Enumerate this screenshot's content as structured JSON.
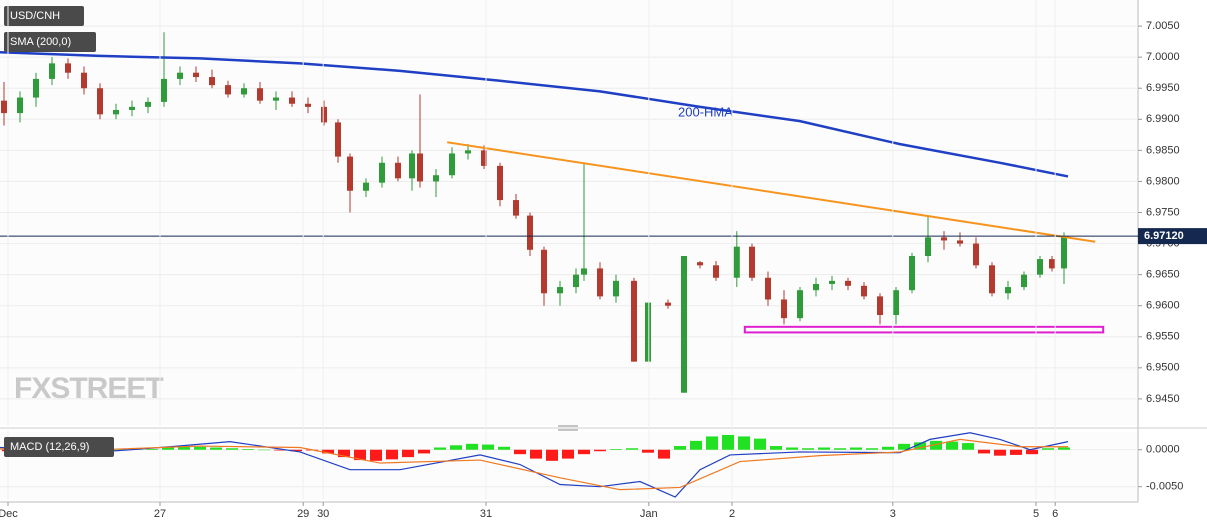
{
  "chart_data": [
    {
      "type": "candlestick",
      "title": "USD/CNH",
      "x": [
        0.5,
        2.5,
        4.5,
        6.5,
        8.5,
        10.5,
        12.5,
        14.5,
        16.5,
        18.5,
        20.5,
        22.5,
        24.5,
        26.5,
        28.5,
        30.5,
        32.5,
        34.5,
        36.5,
        38.5,
        40.5,
        42.25,
        43.75,
        45.75,
        47.75,
        49.75,
        51.5,
        52.5,
        54.5,
        56.5,
        58.5,
        60.5,
        62.5,
        64.5,
        66.25,
        68,
        70,
        72,
        73,
        75,
        77,
        79.25,
        81,
        83.5,
        85.5,
        87.5,
        89.5,
        92.1,
        94,
        96,
        98,
        100,
        102,
        104,
        106,
        108,
        110,
        112,
        114,
        116,
        118,
        120,
        122,
        124,
        126,
        128,
        130,
        131.5,
        133
      ],
      "open": [
        6.993,
        6.991,
        6.9935,
        6.9965,
        6.999,
        6.9975,
        6.995,
        6.9908,
        6.9915,
        6.992,
        6.9928,
        6.9965,
        6.9975,
        6.9968,
        6.9955,
        6.994,
        6.995,
        6.993,
        6.9935,
        6.9925,
        6.992,
        6.9895,
        6.984,
        6.9785,
        6.9798,
        6.983,
        6.9805,
        6.9845,
        6.98,
        6.981,
        6.9845,
        6.985,
        6.9825,
        6.977,
        6.9745,
        6.969,
        6.962,
        6.963,
        6.965,
        6.966,
        6.9615,
        6.964,
        6.951,
        6.9605,
        6.946,
        6.967,
        6.9665,
        6.9645,
        6.9695,
        6.9645,
        6.961,
        6.958,
        6.9625,
        6.9635,
        6.964,
        6.9632,
        6.9615,
        6.9585,
        6.9625,
        6.968,
        6.971,
        6.9705,
        6.97,
        6.9665,
        6.962,
        6.963,
        6.965,
        6.9675,
        6.966
      ],
      "high": [
        6.996,
        6.9945,
        6.9975,
        7.0,
        6.9998,
        6.9985,
        6.9958,
        6.9925,
        6.993,
        6.9935,
        7.004,
        6.9985,
        6.9985,
        6.998,
        6.9962,
        6.9958,
        6.996,
        6.9945,
        6.9945,
        6.9935,
        6.993,
        6.99,
        6.9845,
        6.9805,
        6.984,
        6.984,
        6.985,
        6.994,
        6.982,
        6.9855,
        6.986,
        6.9858,
        6.983,
        6.978,
        6.975,
        6.9695,
        6.964,
        6.966,
        6.983,
        6.967,
        6.965,
        6.9645,
        6.9605,
        6.961,
        6.968,
        6.9672,
        6.9672,
        6.972,
        6.97,
        6.9655,
        6.9625,
        6.963,
        6.9645,
        6.9648,
        6.9645,
        6.9638,
        6.962,
        6.963,
        6.9685,
        6.9745,
        6.972,
        6.9718,
        6.971,
        6.967,
        6.964,
        6.9655,
        6.968,
        6.968,
        6.9718
      ],
      "low": [
        6.989,
        6.9895,
        6.992,
        6.9955,
        6.9965,
        6.994,
        6.99,
        6.99,
        6.9905,
        6.991,
        6.992,
        6.9955,
        6.996,
        6.995,
        6.9935,
        6.9935,
        6.9925,
        6.9915,
        6.992,
        6.991,
        6.989,
        6.983,
        6.975,
        6.9775,
        6.979,
        6.98,
        6.9785,
        6.979,
        6.9775,
        6.9805,
        6.9835,
        6.982,
        6.976,
        6.974,
        6.968,
        6.96,
        6.96,
        6.962,
        6.964,
        6.961,
        6.9605,
        6.951,
        6.951,
        6.9595,
        6.946,
        6.966,
        6.964,
        6.963,
        6.964,
        6.96,
        6.957,
        6.9575,
        6.9615,
        6.9625,
        6.9625,
        6.961,
        6.957,
        6.957,
        6.962,
        6.967,
        6.969,
        6.9695,
        6.966,
        6.9615,
        6.961,
        6.9625,
        6.9645,
        6.9655,
        6.9635
      ],
      "close": [
        6.991,
        6.9935,
        6.9965,
        6.999,
        6.9975,
        6.995,
        6.9908,
        6.9915,
        6.992,
        6.9928,
        6.9965,
        6.9975,
        6.9968,
        6.9955,
        6.994,
        6.995,
        6.993,
        6.9935,
        6.9925,
        6.992,
        6.9895,
        6.984,
        6.9785,
        6.9798,
        6.983,
        6.9805,
        6.9845,
        6.98,
        6.981,
        6.9845,
        6.985,
        6.9825,
        6.977,
        6.9745,
        6.969,
        6.962,
        6.963,
        6.965,
        6.966,
        6.9615,
        6.964,
        6.951,
        6.9605,
        6.96,
        6.968,
        6.9665,
        6.9645,
        6.9695,
        6.9645,
        6.961,
        6.958,
        6.9625,
        6.9635,
        6.964,
        6.9632,
        6.9615,
        6.9585,
        6.9625,
        6.968,
        6.971,
        6.9705,
        6.97,
        6.9665,
        6.962,
        6.963,
        6.965,
        6.9675,
        6.966,
        6.9712
      ],
      "up_color": "#2f9b3a",
      "down_color": "#b23a2e",
      "lines": [
        {
          "name": "SMA (200,0)",
          "annotation": "200-HMA",
          "color": "#1f3fc4",
          "x": [
            0,
            12.5,
            25,
            37.5,
            50,
            62.5,
            75,
            87.5,
            100,
            112.5,
            125,
            133.5
          ],
          "values": [
            7.0008,
            7.0002,
            6.9998,
            6.999,
            6.9978,
            6.9962,
            6.9945,
            6.992,
            6.9897,
            6.986,
            6.983,
            6.9808
          ]
        }
      ],
      "trendline": {
        "color": "#f7941d",
        "x": [
          55.9,
          136.9
        ],
        "values": [
          6.9863,
          6.9703
        ]
      },
      "support": {
        "color": "#e020d0",
        "x": [
          93.1,
          137.9
        ],
        "values": [
          6.9557,
          6.9566
        ]
      },
      "last_price": {
        "value": 6.9712,
        "label": "6.97120",
        "color": "#142850"
      },
      "brand": "FXSTREET",
      "xlim": [
        0,
        142.25
      ],
      "ylim": [
        6.9408,
        7.0092
      ],
      "yticks": [
        {
          "value": 7.005,
          "label": "7.0050"
        },
        {
          "value": 7.0,
          "label": "7.0000"
        },
        {
          "value": 6.995,
          "label": "6.9950"
        },
        {
          "value": 6.99,
          "label": "6.9900"
        },
        {
          "value": 6.985,
          "label": "6.9850"
        },
        {
          "value": 6.98,
          "label": "6.9800"
        },
        {
          "value": 6.975,
          "label": "6.9750"
        },
        {
          "value": 6.97,
          "label": "6.9700"
        },
        {
          "value": 6.965,
          "label": "6.9650"
        },
        {
          "value": 6.96,
          "label": "6.9600"
        },
        {
          "value": 6.955,
          "label": "6.9550"
        },
        {
          "value": 6.95,
          "label": "6.9500"
        },
        {
          "value": 6.945,
          "label": "6.9450"
        }
      ],
      "grid": true
    },
    {
      "type": "macd",
      "title": "MACD (12,26,9)",
      "histogram": {
        "positive_color": "#22e022",
        "negative_color": "#ff1a1a",
        "x": [
          1,
          3,
          5,
          7,
          9,
          11,
          13,
          15,
          17,
          19,
          21,
          23,
          25,
          27,
          29,
          31,
          33,
          35,
          37,
          39,
          41,
          43,
          45,
          47,
          49,
          51,
          53,
          55,
          57,
          59,
          61,
          63,
          65,
          67,
          69,
          71,
          73,
          75,
          77,
          79,
          81,
          83,
          85,
          87,
          89,
          91,
          93,
          95,
          97,
          99,
          101,
          103,
          105,
          107,
          109,
          111,
          113,
          115,
          117,
          119,
          121,
          123,
          125,
          127,
          129,
          131,
          133
        ],
        "values": [
          -0.0002,
          -0.0003,
          -0.0003,
          -0.0002,
          -0.0003,
          -0.0002,
          -0.0002,
          0,
          0.0001,
          0.0001,
          0.0003,
          0.0004,
          0.0004,
          0.0003,
          0.0002,
          0.0001,
          0,
          -0.0001,
          -0.0002,
          -0.0001,
          -0.0005,
          -0.001,
          -0.0014,
          -0.0015,
          -0.0013,
          -0.001,
          -0.0005,
          0.0003,
          0.0006,
          0.0008,
          0.0007,
          0.0004,
          -0.0006,
          -0.0012,
          -0.0015,
          -0.0012,
          -0.0006,
          -0.0002,
          0.0001,
          0.0002,
          -0.0004,
          -0.0012,
          0.0005,
          0.0012,
          0.0018,
          0.002,
          0.0018,
          0.0015,
          0.0005,
          0.0003,
          0.0002,
          0.0003,
          0.0002,
          0.0003,
          0.0002,
          0.0004,
          0.0008,
          0.001,
          0.0012,
          0.0011,
          0.0009,
          -0.0005,
          -0.0008,
          -0.0007,
          -0.0006,
          0.0002,
          0.0003
        ]
      },
      "series": [
        {
          "color": "#1f3fc4",
          "x": [
            0,
            12.5,
            21.25,
            28.75,
            37.5,
            43.75,
            50,
            60,
            65,
            70,
            75,
            80,
            84.4,
            87.5,
            91.25,
            100,
            112.5,
            116.25,
            121.25,
            125,
            128.75,
            133.5
          ],
          "values": [
            0.0003,
            -0.0003,
            0.0004,
            0.0011,
            -0.0003,
            -0.0027,
            -0.0027,
            -0.0007,
            -0.002,
            -0.0047,
            -0.005,
            -0.0043,
            -0.0064,
            -0.0027,
            -0.0007,
            -0.0003,
            -0.0004,
            0.0014,
            0.0023,
            0.0014,
            0,
            0.0011
          ]
        },
        {
          "color": "#f07820",
          "x": [
            0,
            12.5,
            25,
            37.5,
            47.5,
            60,
            70,
            77.5,
            85,
            92.5,
            102.5,
            112.5,
            120,
            127.5,
            133.5
          ],
          "values": [
            0.0001,
            0,
            0.0005,
            0.0003,
            -0.0018,
            -0.0014,
            -0.0038,
            -0.0054,
            -0.0051,
            -0.0016,
            -0.0008,
            -0.0003,
            0.0014,
            0.0004,
            0.0004
          ]
        }
      ],
      "xlim": [
        0,
        142.25
      ],
      "ylim": [
        -0.0068,
        0.0024
      ],
      "yticks": [
        {
          "value": 0,
          "label": "0.0000"
        },
        {
          "value": -0.005,
          "label": "-0.0050"
        }
      ],
      "xticks": [
        {
          "value": 1,
          "label": "Dec"
        },
        {
          "value": 20,
          "label": "27"
        },
        {
          "value": 37.9,
          "label": "29"
        },
        {
          "value": 40.4,
          "label": "30"
        },
        {
          "value": 60.75,
          "label": "31"
        },
        {
          "value": 81.1,
          "label": "Jan"
        },
        {
          "value": 91.5,
          "label": "2"
        },
        {
          "value": 111.6,
          "label": "3"
        },
        {
          "value": 129.5,
          "label": "5"
        },
        {
          "value": 131.9,
          "label": "6"
        }
      ],
      "grid": true
    }
  ]
}
